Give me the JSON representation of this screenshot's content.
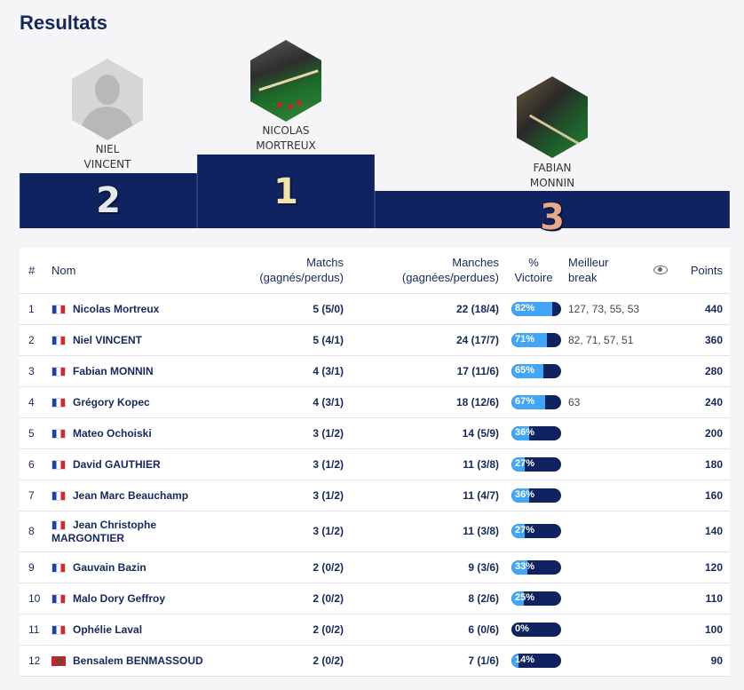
{
  "page": {
    "title": "Resultats"
  },
  "podium": [
    {
      "rank": "2",
      "first": "NIEL",
      "last": "VINCENT",
      "rank_color": "#e8e8e8"
    },
    {
      "rank": "1",
      "first": "NICOLAS",
      "last": "MORTREUX",
      "rank_color": "#f2e3a6"
    },
    {
      "rank": "3",
      "first": "FABIAN",
      "last": "MONNIN",
      "rank_color": "#e6a98a"
    }
  ],
  "table": {
    "headers": {
      "num": "#",
      "name": "Nom",
      "matchs_1": "Matchs",
      "matchs_2": "(gagnés/perdus)",
      "manches_1": "Manches",
      "manches_2": "(gagnées/perdues)",
      "pct_1": "%",
      "pct_2": "Victoire",
      "break_1": "Meilleur",
      "break_2": "break",
      "points": "Points"
    },
    "rows": [
      {
        "num": "1",
        "flag": "fr",
        "name": "Nicolas Mortreux",
        "matchs": "5 (5/0)",
        "manches": "22 (18/4)",
        "pct": "82%",
        "pct_value": 82,
        "break": "127, 73, 55, 53",
        "points": "440"
      },
      {
        "num": "2",
        "flag": "fr",
        "name": "Niel VINCENT",
        "matchs": "5 (4/1)",
        "manches": "24 (17/7)",
        "pct": "71%",
        "pct_value": 71,
        "break": "82, 71, 57, 51",
        "points": "360"
      },
      {
        "num": "3",
        "flag": "fr",
        "name": "Fabian MONNIN",
        "matchs": "4 (3/1)",
        "manches": "17 (11/6)",
        "pct": "65%",
        "pct_value": 65,
        "break": "",
        "points": "280"
      },
      {
        "num": "4",
        "flag": "fr",
        "name": "Grégory Kopec",
        "matchs": "4 (3/1)",
        "manches": "18 (12/6)",
        "pct": "67%",
        "pct_value": 67,
        "break": "63",
        "points": "240"
      },
      {
        "num": "5",
        "flag": "fr",
        "name": "Mateo Ochoiski",
        "matchs": "3 (1/2)",
        "manches": "14 (5/9)",
        "pct": "36%",
        "pct_value": 36,
        "break": "",
        "points": "200"
      },
      {
        "num": "6",
        "flag": "fr",
        "name": "David GAUTHIER",
        "matchs": "3 (1/2)",
        "manches": "11 (3/8)",
        "pct": "27%",
        "pct_value": 27,
        "break": "",
        "points": "180"
      },
      {
        "num": "7",
        "flag": "fr",
        "name": "Jean Marc Beauchamp",
        "matchs": "3 (1/2)",
        "manches": "11 (4/7)",
        "pct": "36%",
        "pct_value": 36,
        "break": "",
        "points": "160"
      },
      {
        "num": "8",
        "flag": "fr",
        "name": "Jean Christophe MARGONTIER",
        "name_line1": "Jean Christophe",
        "name_line2": "MARGONTIER",
        "matchs": "3 (1/2)",
        "manches": "11 (3/8)",
        "pct": "27%",
        "pct_value": 27,
        "break": "",
        "points": "140"
      },
      {
        "num": "9",
        "flag": "fr",
        "name": "Gauvain Bazin",
        "matchs": "2 (0/2)",
        "manches": "9 (3/6)",
        "pct": "33%",
        "pct_value": 33,
        "break": "",
        "points": "120"
      },
      {
        "num": "10",
        "flag": "fr",
        "name": "Malo Dory Geffroy",
        "matchs": "2 (0/2)",
        "manches": "8 (2/6)",
        "pct": "25%",
        "pct_value": 25,
        "break": "",
        "points": "110"
      },
      {
        "num": "11",
        "flag": "fr",
        "name": "Ophélie Laval",
        "matchs": "2 (0/2)",
        "manches": "6 (0/6)",
        "pct": "0%",
        "pct_value": 0,
        "break": "",
        "points": "100"
      },
      {
        "num": "12",
        "flag": "ma",
        "name": "Bensalem BENMASSOUD",
        "matchs": "2 (0/2)",
        "manches": "7 (1/6)",
        "pct": "14%",
        "pct_value": 14,
        "break": "",
        "points": "90"
      }
    ]
  },
  "colors": {
    "navy": "#0f2360",
    "bar_fill": "#42a5f5"
  },
  "icons": {
    "visibility": "eye-icon",
    "avatar_placeholder": "user-silhouette-icon"
  }
}
